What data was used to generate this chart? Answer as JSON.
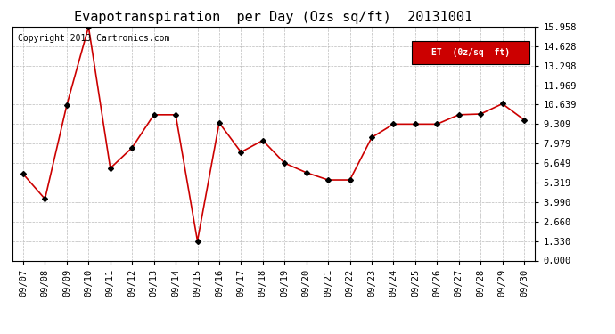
{
  "title": "Evapotranspiration  per Day (Ozs sq/ft)  20131001",
  "copyright": "Copyright 2013 Cartronics.com",
  "legend_label": "ET  (0z/sq  ft)",
  "legend_bg": "#cc0000",
  "legend_text_color": "#ffffff",
  "x_labels": [
    "09/07",
    "09/08",
    "09/09",
    "09/10",
    "09/11",
    "09/12",
    "09/13",
    "09/14",
    "09/15",
    "09/16",
    "09/17",
    "09/18",
    "09/19",
    "09/20",
    "09/21",
    "09/22",
    "09/23",
    "09/24",
    "09/25",
    "09/26",
    "09/27",
    "09/28",
    "09/29",
    "09/30"
  ],
  "y_values": [
    5.9,
    4.2,
    10.6,
    15.958,
    6.3,
    7.7,
    9.95,
    9.95,
    1.33,
    9.4,
    7.4,
    8.2,
    6.65,
    6.0,
    5.5,
    5.5,
    8.4,
    9.31,
    9.31,
    9.31,
    9.95,
    10.0,
    10.7,
    9.6
  ],
  "y_ticks": [
    0.0,
    1.33,
    2.66,
    3.99,
    5.319,
    6.649,
    7.979,
    9.309,
    10.639,
    11.969,
    13.298,
    14.628,
    15.958
  ],
  "y_tick_labels": [
    "0.000",
    "1.330",
    "2.660",
    "3.990",
    "5.319",
    "6.649",
    "7.979",
    "9.309",
    "10.639",
    "11.969",
    "13.298",
    "14.628",
    "15.958"
  ],
  "ylim": [
    0.0,
    15.958
  ],
  "line_color": "#cc0000",
  "marker_color": "#000000",
  "bg_color": "#ffffff",
  "grid_color": "#bbbbbb",
  "title_fontsize": 11,
  "tick_fontsize": 7.5,
  "copyright_fontsize": 7
}
